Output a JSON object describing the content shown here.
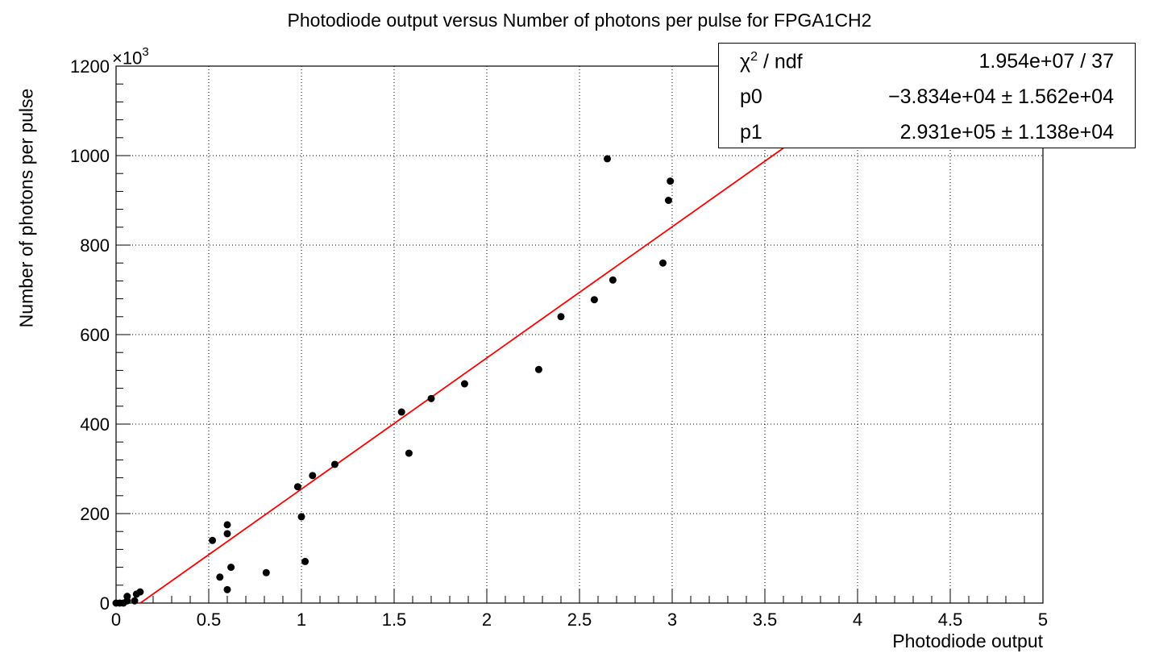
{
  "chart_data": {
    "type": "scatter",
    "title": "Photodiode output versus Number of photons per pulse for FPGA1CH2",
    "xlabel": "Photodiode output",
    "ylabel": "Number of photons per pulse",
    "y_multiplier": "×10",
    "y_multiplier_exp": "3",
    "xlim": [
      0,
      5
    ],
    "ylim": [
      0,
      1200
    ],
    "x_ticks": [
      "0",
      "0.5",
      "1",
      "1.5",
      "2",
      "2.5",
      "3",
      "3.5",
      "4",
      "4.5",
      "5"
    ],
    "y_ticks": [
      "0",
      "200",
      "400",
      "600",
      "800",
      "1000",
      "1200"
    ],
    "grid": true,
    "series": [
      {
        "color": "#000000",
        "points": [
          [
            0.0,
            0
          ],
          [
            0.02,
            0
          ],
          [
            0.04,
            0
          ],
          [
            0.06,
            5
          ],
          [
            0.06,
            15
          ],
          [
            0.1,
            5
          ],
          [
            0.11,
            20
          ],
          [
            0.13,
            25
          ],
          [
            0.52,
            140
          ],
          [
            0.56,
            58
          ],
          [
            0.6,
            30
          ],
          [
            0.6,
            155
          ],
          [
            0.6,
            175
          ],
          [
            0.62,
            80
          ],
          [
            0.81,
            68
          ],
          [
            0.98,
            260
          ],
          [
            1.0,
            193
          ],
          [
            1.02,
            93
          ],
          [
            1.06,
            285
          ],
          [
            1.18,
            310
          ],
          [
            1.54,
            427
          ],
          [
            1.58,
            335
          ],
          [
            1.7,
            457
          ],
          [
            1.88,
            490
          ],
          [
            2.28,
            522
          ],
          [
            2.4,
            640
          ],
          [
            2.58,
            678
          ],
          [
            2.65,
            993
          ],
          [
            2.68,
            722
          ],
          [
            2.95,
            760
          ],
          [
            2.98,
            900
          ],
          [
            2.99,
            943
          ]
        ]
      }
    ],
    "fit": {
      "type": "line",
      "color": "#ff0000",
      "p0": -38.34,
      "p1": 293.1,
      "x_range": [
        0.13,
        3.6
      ]
    }
  },
  "stats": {
    "rows": [
      {
        "key": "χ",
        "key_sup": "2",
        "key_rest": " / ndf",
        "value": "1.954e+07 / 37"
      },
      {
        "key": "p0",
        "key_sup": "",
        "key_rest": "",
        "value": "−3.834e+04 ± 1.562e+04"
      },
      {
        "key": "p1",
        "key_sup": "",
        "key_rest": "",
        "value": "2.931e+05 ± 1.138e+04"
      }
    ]
  }
}
